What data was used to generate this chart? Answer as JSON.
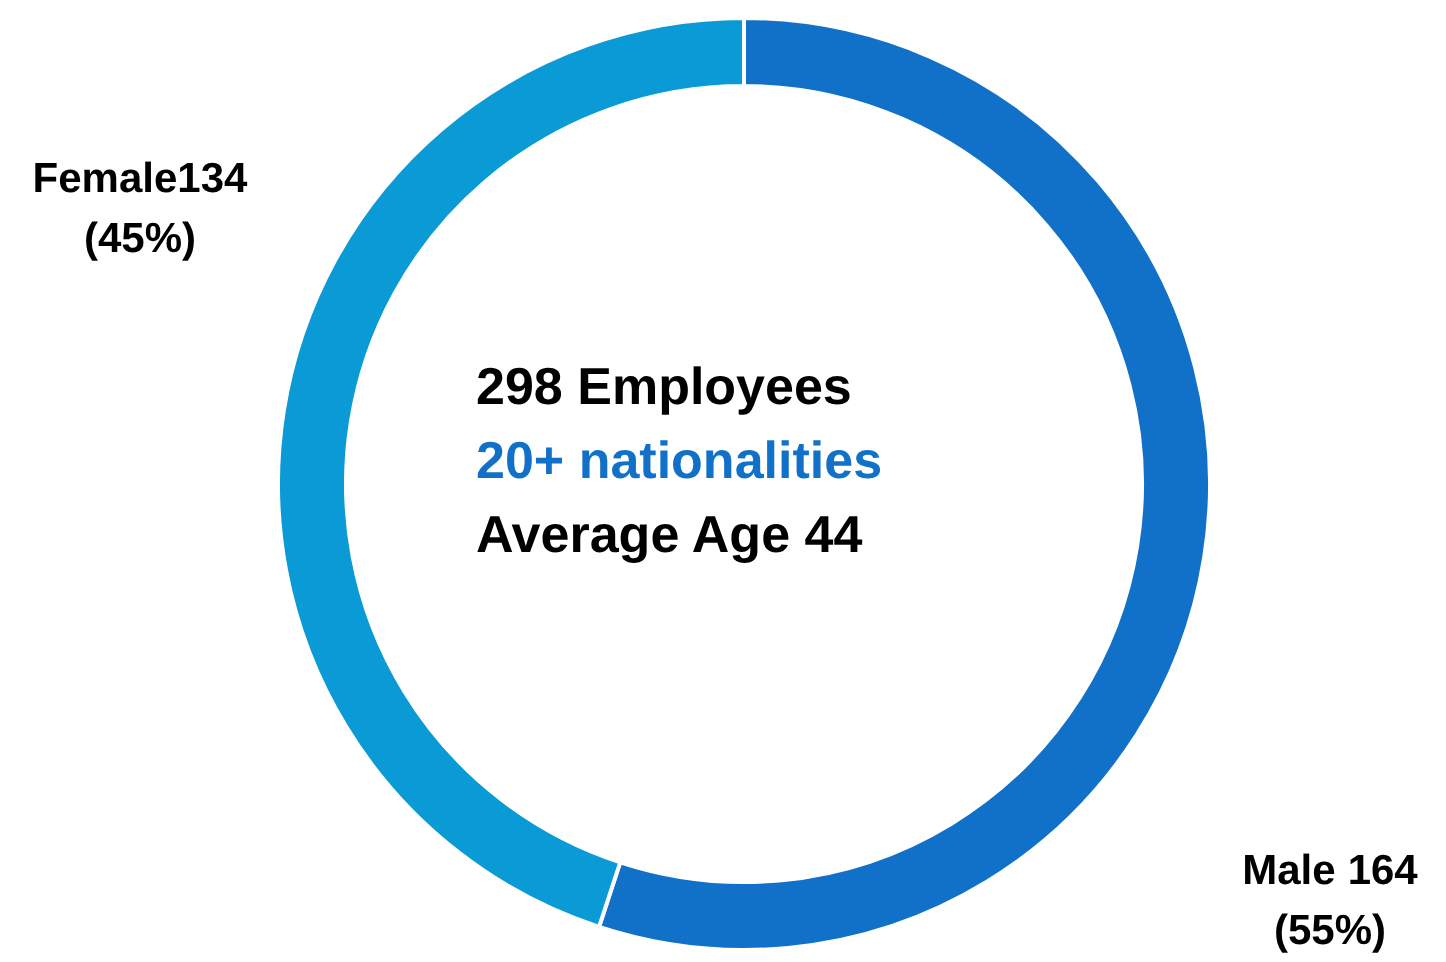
{
  "chart_data": {
    "type": "donut",
    "categories": [
      "Male",
      "Female"
    ],
    "values": [
      164,
      134
    ],
    "colors": [
      "#1170c8",
      "#0a9ad6"
    ],
    "value_labels": [
      "164\n(55%)",
      "134\n(45%)"
    ],
    "annotations": [
      "298 Employees",
      "20+ nationalities",
      "Average Age 44"
    ],
    "legend": false
  }
}
